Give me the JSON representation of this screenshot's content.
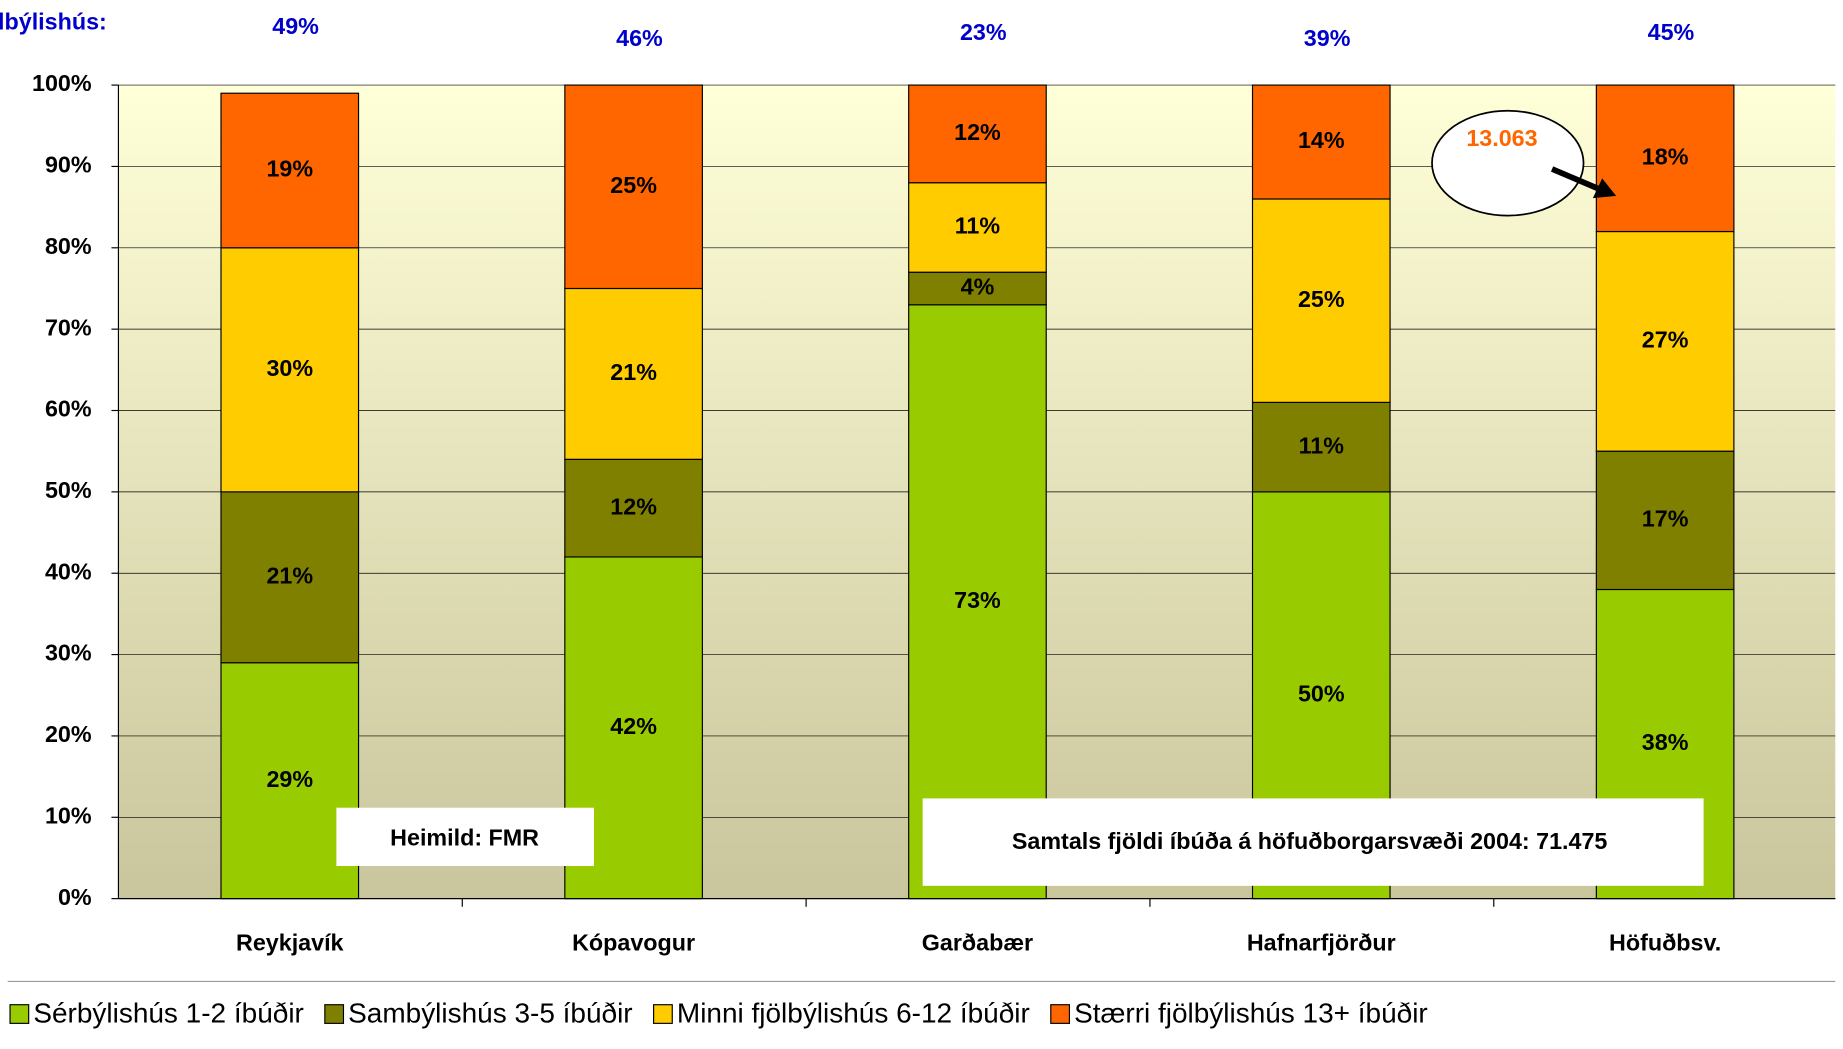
{
  "chart_data": {
    "type": "stacked_bar",
    "categories": [
      "Reykjavík",
      "Kópavogur",
      "Garðabær",
      "Hafnarfjörður",
      "Höfuðbsv."
    ],
    "series": [
      {
        "name": "Sérbýlishús 1-2 íbúðir",
        "color": "#99cc00",
        "values": [
          29,
          42,
          73,
          50,
          38
        ],
        "value_labels": [
          "29%",
          "42%",
          "73%",
          "50%",
          "38%"
        ]
      },
      {
        "name": "Sambýlishús 3-5 íbúðir",
        "color": "#808000",
        "values": [
          21,
          12,
          4,
          11,
          17
        ],
        "value_labels": [
          "21%",
          "12%",
          "4%",
          "11%",
          "17%"
        ]
      },
      {
        "name": "Minni fjölbýlishús 6-12 íbúðir",
        "color": "#ffcc00",
        "values": [
          30,
          21,
          11,
          25,
          27
        ],
        "value_labels": [
          "30%",
          "21%",
          "11%",
          "25%",
          "27%"
        ]
      },
      {
        "name": "Stærri fjölbýlishús 13+ íbúðir",
        "color": "#ff6600",
        "values": [
          19,
          25,
          12,
          14,
          18
        ],
        "value_labels": [
          "19%",
          "25%",
          "12%",
          "14%",
          "18%"
        ]
      }
    ],
    "top_labels": {
      "label": "Fjölbýlishús:",
      "values": [
        49,
        46,
        23,
        39,
        45
      ],
      "value_labels": [
        "49%",
        "46%",
        "23%",
        "39%",
        "45%"
      ]
    },
    "ylim": [
      0,
      100
    ],
    "yticks": [
      {
        "value": 0,
        "label": "0%"
      },
      {
        "value": 10,
        "label": "10%"
      },
      {
        "value": 20,
        "label": "20%"
      },
      {
        "value": 30,
        "label": "30%"
      },
      {
        "value": 40,
        "label": "40%"
      },
      {
        "value": 50,
        "label": "50%"
      },
      {
        "value": 60,
        "label": "60%"
      },
      {
        "value": 70,
        "label": "70%"
      },
      {
        "value": 80,
        "label": "80%"
      },
      {
        "value": 90,
        "label": "90%"
      },
      {
        "value": 100,
        "label": "100%"
      }
    ],
    "annotations": [
      "Heimild: FMR",
      "Samtals fjöldi íbúða á höfuðborgarsvæði 2004: 71.475",
      "13.063"
    ],
    "legend": "bottom"
  }
}
